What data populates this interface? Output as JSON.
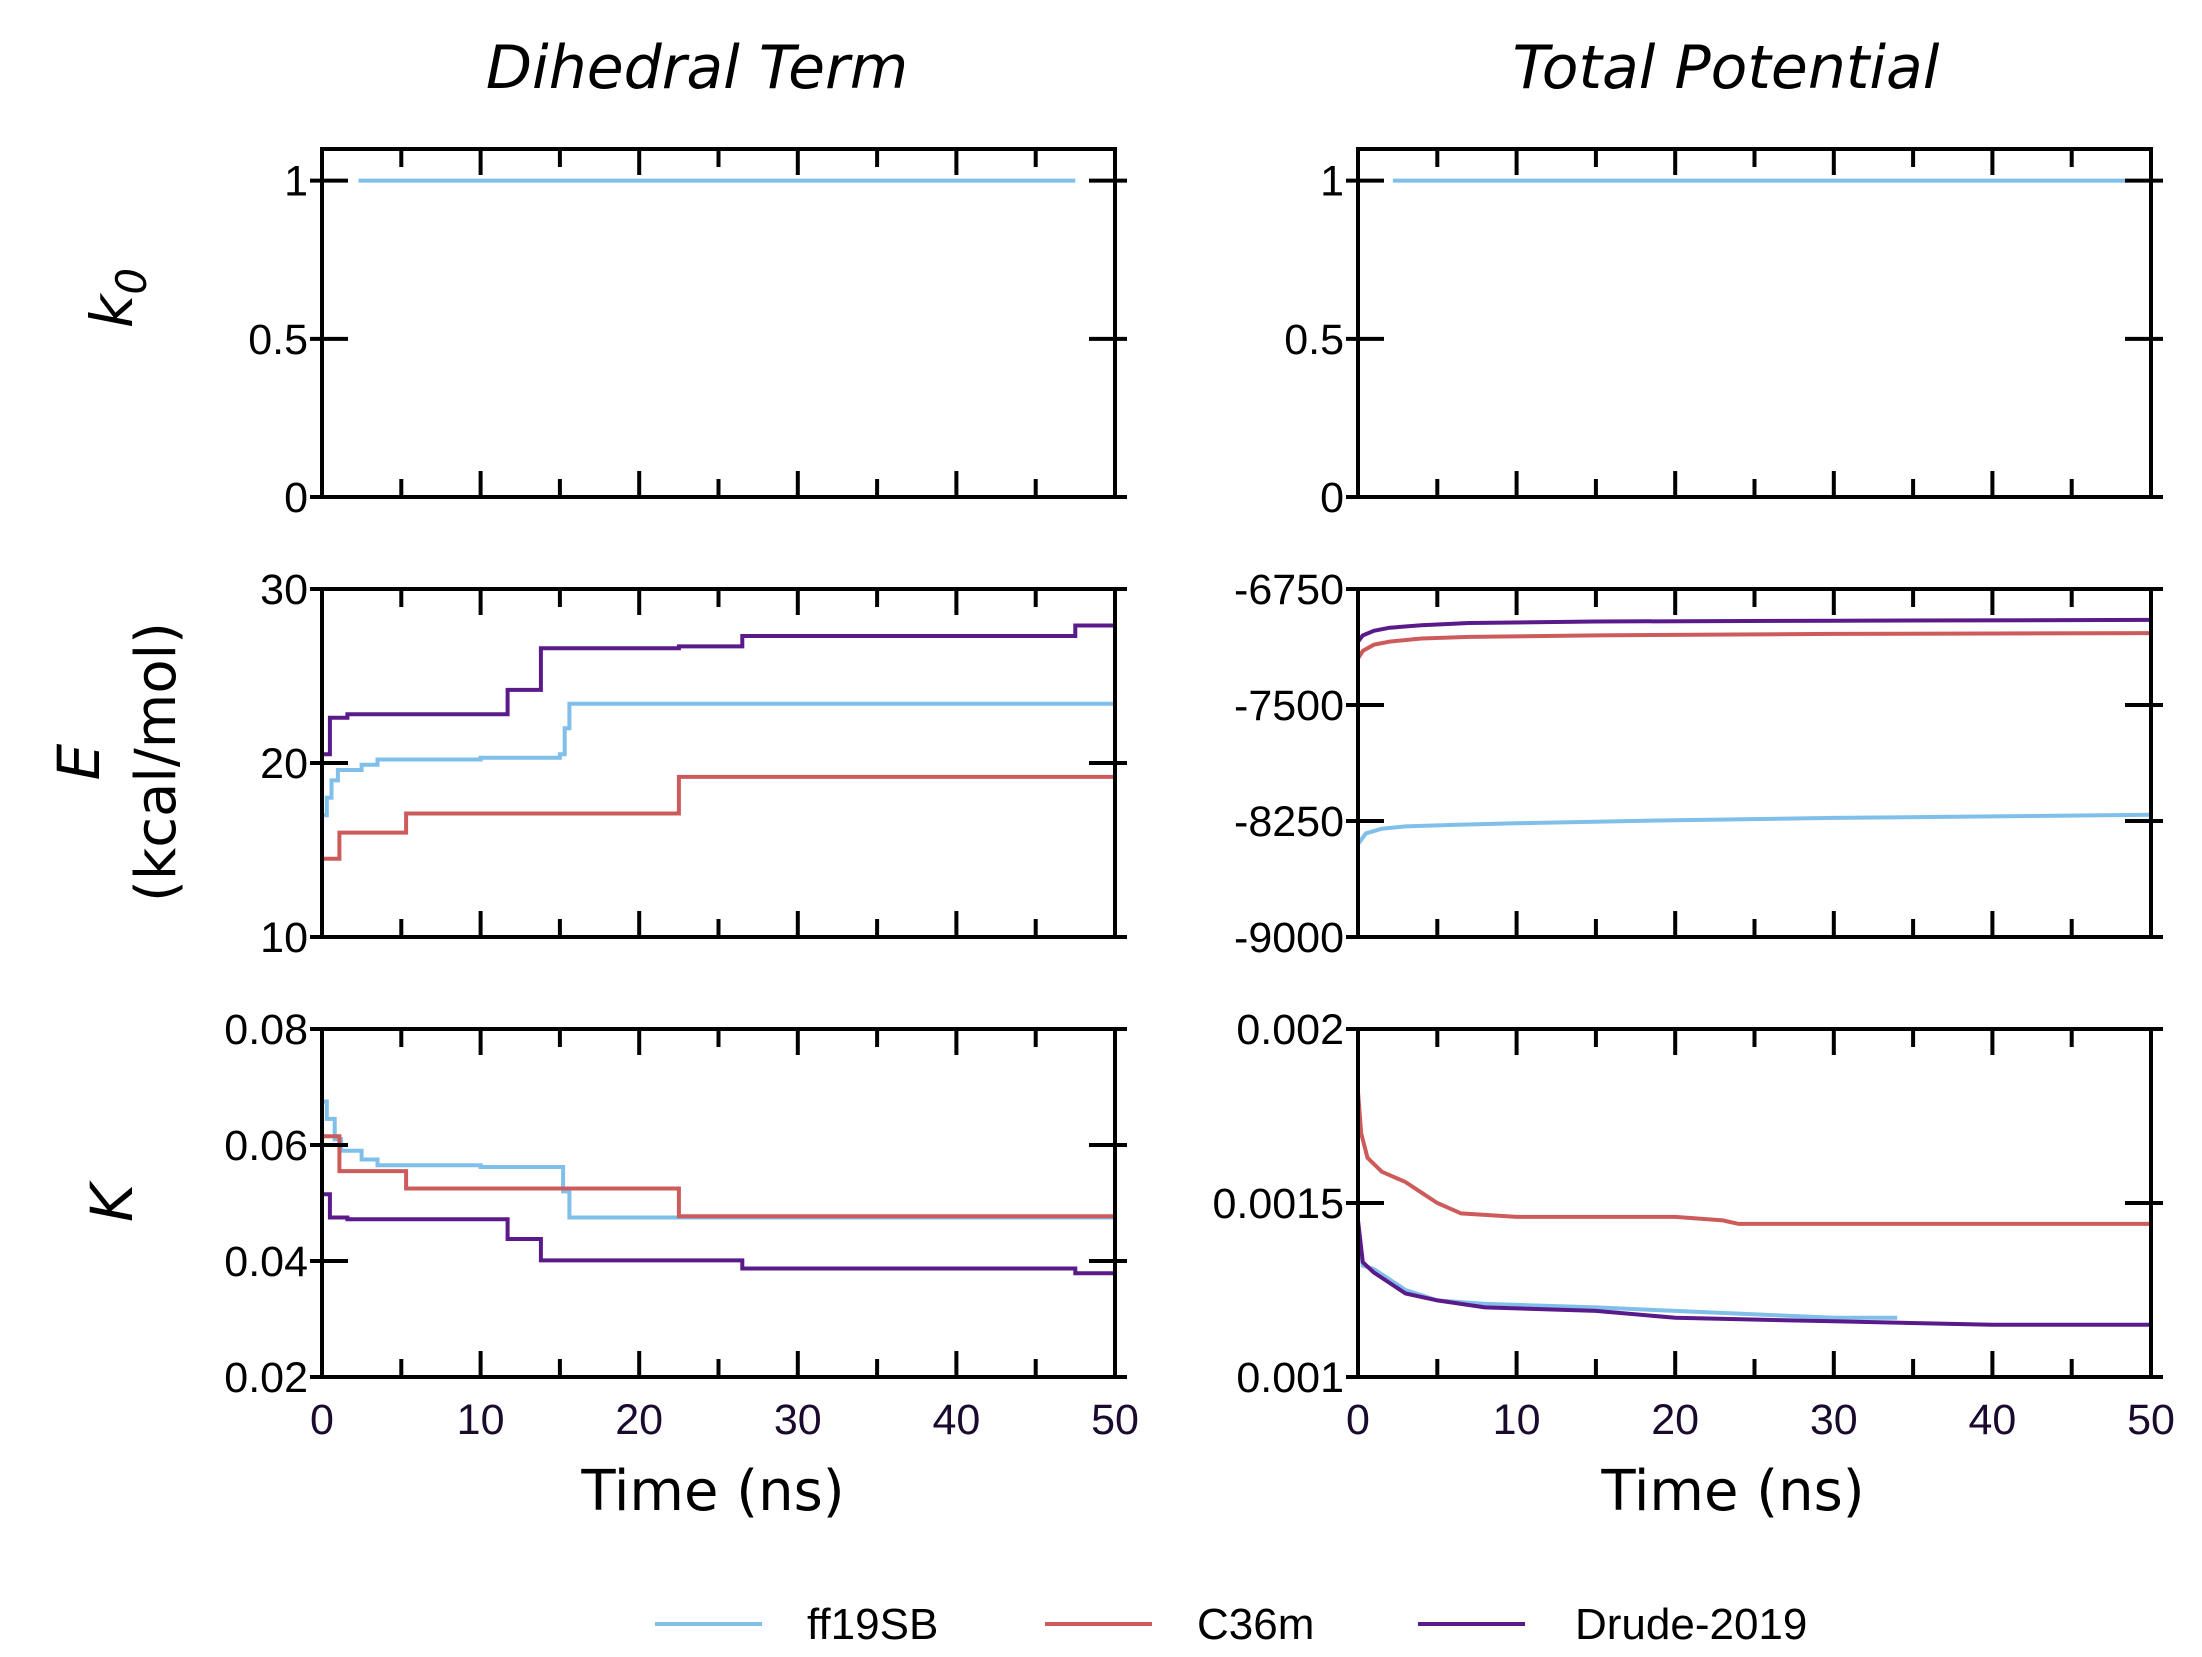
{
  "columns": [
    "Dihedral Term",
    "Total Potential"
  ],
  "row_labels": {
    "k0": {
      "main": "k",
      "sub": "0"
    },
    "E": {
      "main": "E",
      "unit": "(kcal/mol)"
    },
    "K": {
      "main": "K"
    }
  },
  "xlabel": "Time (ns)",
  "legend": [
    {
      "name": "ff19SB",
      "color": "#7fbfe9"
    },
    {
      "name": "C36m",
      "color": "#cd5b5b"
    },
    {
      "name": "Drude-2019",
      "color": "#5a1a8a"
    }
  ],
  "chart_data": [
    {
      "id": "dihedral-k0",
      "type": "line",
      "xlim": [
        0,
        50
      ],
      "ylim": [
        0,
        1.1
      ],
      "yticks": [
        0,
        0.5,
        1
      ],
      "ytick_labels": [
        "0",
        "0.5",
        "1"
      ],
      "xticks": [
        0,
        10,
        20,
        30,
        40,
        50
      ],
      "xtick_labels": [],
      "series": [
        {
          "color": "#7fbfe9",
          "points": [
            [
              2.3,
              1
            ],
            [
              47.5,
              1
            ]
          ]
        }
      ]
    },
    {
      "id": "total-k0",
      "type": "line",
      "xlim": [
        0,
        50
      ],
      "ylim": [
        0,
        1.1
      ],
      "yticks": [
        0,
        0.5,
        1
      ],
      "ytick_labels": [
        "0",
        "0.5",
        "1"
      ],
      "xticks": [
        0,
        10,
        20,
        30,
        40,
        50
      ],
      "xtick_labels": [],
      "series": [
        {
          "color": "#7fbfe9",
          "points": [
            [
              2.2,
              1
            ],
            [
              48.5,
              1
            ]
          ]
        }
      ]
    },
    {
      "id": "dihedral-E",
      "type": "line",
      "xlim": [
        0,
        50
      ],
      "ylim": [
        10,
        30
      ],
      "yticks": [
        10,
        20,
        30
      ],
      "ytick_labels": [
        "10",
        "20",
        "30"
      ],
      "xticks": [
        0,
        10,
        20,
        30,
        40,
        50
      ],
      "xtick_labels": [],
      "series": [
        {
          "color": "#7fbfe9",
          "points": [
            [
              0,
              17.0
            ],
            [
              0.3,
              17.0
            ],
            [
              0.3,
              18.0
            ],
            [
              0.6,
              18.0
            ],
            [
              0.6,
              19.0
            ],
            [
              1.0,
              19.0
            ],
            [
              1.0,
              19.6
            ],
            [
              2.5,
              19.6
            ],
            [
              2.5,
              19.9
            ],
            [
              3.5,
              19.9
            ],
            [
              3.5,
              20.2
            ],
            [
              10.0,
              20.2
            ],
            [
              10.0,
              20.3
            ],
            [
              15.0,
              20.3
            ],
            [
              15.0,
              20.5
            ],
            [
              15.3,
              20.5
            ],
            [
              15.3,
              22.0
            ],
            [
              15.6,
              22.0
            ],
            [
              15.6,
              23.4
            ],
            [
              50,
              23.4
            ]
          ]
        },
        {
          "color": "#cd5b5b",
          "points": [
            [
              0,
              14.5
            ],
            [
              1.1,
              14.5
            ],
            [
              1.1,
              16.0
            ],
            [
              5.3,
              16.0
            ],
            [
              5.3,
              17.1
            ],
            [
              22.5,
              17.1
            ],
            [
              22.5,
              19.2
            ],
            [
              50,
              19.2
            ]
          ]
        },
        {
          "color": "#5a1a8a",
          "points": [
            [
              0,
              20.5
            ],
            [
              0.5,
              20.5
            ],
            [
              0.5,
              22.6
            ],
            [
              1.6,
              22.6
            ],
            [
              1.6,
              22.8
            ],
            [
              11.7,
              22.8
            ],
            [
              11.7,
              24.2
            ],
            [
              13.8,
              24.2
            ],
            [
              13.8,
              26.6
            ],
            [
              22.5,
              26.6
            ],
            [
              22.5,
              26.7
            ],
            [
              26.5,
              26.7
            ],
            [
              26.5,
              27.3
            ],
            [
              47.5,
              27.3
            ],
            [
              47.5,
              27.9
            ],
            [
              50,
              27.9
            ]
          ]
        }
      ]
    },
    {
      "id": "total-E",
      "type": "line",
      "xlim": [
        0,
        50
      ],
      "ylim": [
        -9000,
        -6750
      ],
      "yticks": [
        -9000,
        -8250,
        -7500,
        -6750
      ],
      "ytick_labels": [
        "-9000",
        "-8250",
        "-7500",
        "-6750"
      ],
      "xticks": [
        0,
        10,
        20,
        30,
        40,
        50
      ],
      "xtick_labels": [],
      "series": [
        {
          "color": "#7fbfe9",
          "points": [
            [
              0,
              -8400
            ],
            [
              0.5,
              -8330
            ],
            [
              1.5,
              -8300
            ],
            [
              3,
              -8285
            ],
            [
              6,
              -8275
            ],
            [
              10,
              -8265
            ],
            [
              20,
              -8245
            ],
            [
              30,
              -8230
            ],
            [
              40,
              -8220
            ],
            [
              50,
              -8210
            ]
          ]
        },
        {
          "color": "#cd5b5b",
          "points": [
            [
              0,
              -7200
            ],
            [
              0.3,
              -7150
            ],
            [
              1,
              -7110
            ],
            [
              2,
              -7090
            ],
            [
              4,
              -7070
            ],
            [
              7,
              -7060
            ],
            [
              15,
              -7050
            ],
            [
              30,
              -7040
            ],
            [
              50,
              -7035
            ]
          ]
        },
        {
          "color": "#5a1a8a",
          "points": [
            [
              0,
              -7090
            ],
            [
              0.3,
              -7050
            ],
            [
              1,
              -7020
            ],
            [
              2,
              -7000
            ],
            [
              4,
              -6985
            ],
            [
              7,
              -6970
            ],
            [
              15,
              -6960
            ],
            [
              30,
              -6955
            ],
            [
              50,
              -6950
            ]
          ]
        }
      ]
    },
    {
      "id": "dihedral-K",
      "type": "line",
      "xlim": [
        0,
        50
      ],
      "ylim": [
        0.02,
        0.08
      ],
      "yticks": [
        0.02,
        0.04,
        0.06,
        0.08
      ],
      "ytick_labels": [
        "0.02",
        "0.04",
        "0.06",
        "0.08"
      ],
      "xticks": [
        0,
        10,
        20,
        30,
        40,
        50
      ],
      "xtick_labels": [
        "0",
        "10",
        "20",
        "30",
        "40",
        "50"
      ],
      "series": [
        {
          "color": "#7fbfe9",
          "points": [
            [
              0,
              0.0675
            ],
            [
              0.3,
              0.0675
            ],
            [
              0.3,
              0.0645
            ],
            [
              0.8,
              0.0645
            ],
            [
              0.8,
              0.061
            ],
            [
              1.2,
              0.061
            ],
            [
              1.2,
              0.059
            ],
            [
              2.5,
              0.059
            ],
            [
              2.5,
              0.0575
            ],
            [
              3.5,
              0.0575
            ],
            [
              3.5,
              0.0565
            ],
            [
              10.0,
              0.0565
            ],
            [
              10.0,
              0.0562
            ],
            [
              15.2,
              0.0562
            ],
            [
              15.2,
              0.052
            ],
            [
              15.6,
              0.052
            ],
            [
              15.6,
              0.0475
            ],
            [
              22.5,
              0.0475
            ],
            [
              50,
              0.0475
            ]
          ]
        },
        {
          "color": "#cd5b5b",
          "points": [
            [
              0,
              0.0615
            ],
            [
              1.1,
              0.0615
            ],
            [
              1.1,
              0.0555
            ],
            [
              5.3,
              0.0555
            ],
            [
              5.3,
              0.0525
            ],
            [
              22.5,
              0.0525
            ],
            [
              22.5,
              0.0477
            ],
            [
              50,
              0.0477
            ]
          ]
        },
        {
          "color": "#5a1a8a",
          "points": [
            [
              0,
              0.0515
            ],
            [
              0.5,
              0.0515
            ],
            [
              0.5,
              0.0475
            ],
            [
              1.6,
              0.0475
            ],
            [
              1.6,
              0.0472
            ],
            [
              11.7,
              0.0472
            ],
            [
              11.7,
              0.0438
            ],
            [
              13.8,
              0.0438
            ],
            [
              13.8,
              0.0401
            ],
            [
              26.5,
              0.0401
            ],
            [
              26.5,
              0.0387
            ],
            [
              47.5,
              0.0387
            ],
            [
              47.5,
              0.0379
            ],
            [
              50,
              0.0379
            ]
          ]
        }
      ]
    },
    {
      "id": "total-K",
      "type": "line",
      "xlim": [
        0,
        50
      ],
      "ylim": [
        0.001,
        0.002
      ],
      "yticks": [
        0.001,
        0.0015,
        0.002
      ],
      "ytick_labels": [
        "0.001",
        "0.0015",
        "0.002"
      ],
      "xticks": [
        0,
        10,
        20,
        30,
        40,
        50
      ],
      "xtick_labels": [
        "0",
        "10",
        "20",
        "30",
        "40",
        "50"
      ],
      "series": [
        {
          "color": "#cd5b5b",
          "points": [
            [
              0,
              0.00182
            ],
            [
              0.2,
              0.0017
            ],
            [
              0.6,
              0.00163
            ],
            [
              1.5,
              0.00159
            ],
            [
              3,
              0.00156
            ],
            [
              4,
              0.00153
            ],
            [
              5,
              0.0015
            ],
            [
              6.5,
              0.00147
            ],
            [
              10,
              0.00146
            ],
            [
              20,
              0.00146
            ],
            [
              23,
              0.00145
            ],
            [
              24,
              0.00144
            ],
            [
              40,
              0.00144
            ],
            [
              50,
              0.00144
            ]
          ]
        },
        {
          "color": "#7fbfe9",
          "points": [
            [
              0,
              0.00142
            ],
            [
              0.3,
              0.00132
            ],
            [
              1,
              0.00131
            ],
            [
              2,
              0.00128
            ],
            [
              3,
              0.00125
            ],
            [
              5,
              0.00122
            ],
            [
              8,
              0.00121
            ],
            [
              15,
              0.0012
            ],
            [
              20,
              0.00119
            ],
            [
              30,
              0.00117
            ],
            [
              34,
              0.00117
            ]
          ]
        },
        {
          "color": "#5a1a8a",
          "points": [
            [
              0,
              0.00145
            ],
            [
              0.3,
              0.00133
            ],
            [
              1,
              0.0013
            ],
            [
              2,
              0.00127
            ],
            [
              3,
              0.00124
            ],
            [
              5,
              0.00122
            ],
            [
              8,
              0.0012
            ],
            [
              15,
              0.00119
            ],
            [
              20,
              0.00117
            ],
            [
              30,
              0.00116
            ],
            [
              40,
              0.00115
            ],
            [
              50,
              0.00115
            ]
          ]
        }
      ]
    }
  ]
}
